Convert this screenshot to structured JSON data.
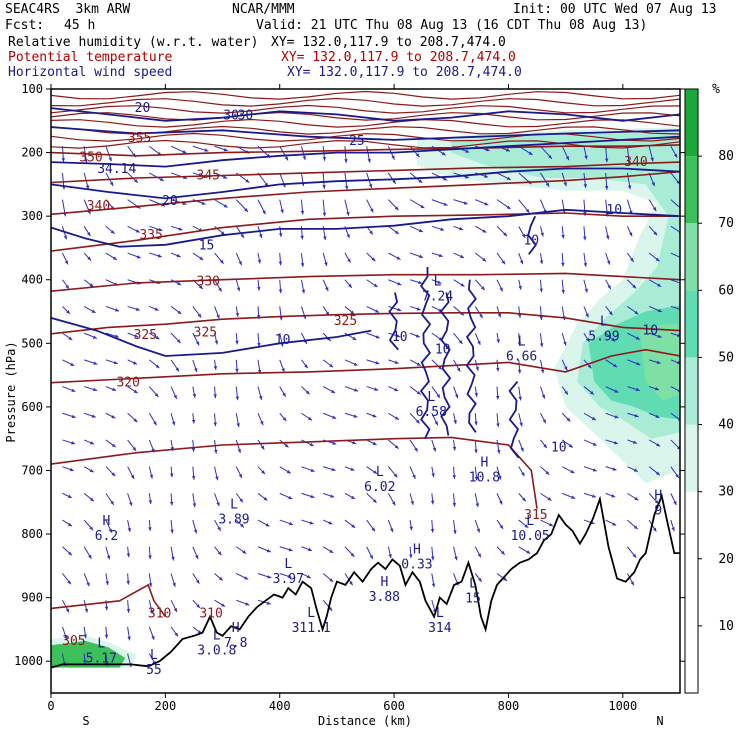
{
  "header": {
    "model": "SEAC4RS  3km ARW",
    "org": "NCAR/MMM",
    "init": "Init: 00 UTC Wed 07 Aug 13",
    "fcst_label": "Fcst:",
    "fcst_value": "45 h",
    "valid": "Valid: 21 UTC Thu 08 Aug 13 (16 CDT Thu 08 Aug 13)",
    "field1": "Relative humidity (w.r.t. water)",
    "field1_xy": "XY= 132.0,117.9 to 208.7,474.0",
    "field2": "Potential temperature",
    "field2_xy": "XY= 132.0,117.9 to 208.7,474.0",
    "field3": "Horizontal wind speed",
    "field3_xy": "XY= 132.0,117.9 to 208.7,474.0"
  },
  "colors": {
    "theta": "#8b1a1a",
    "wind": "#1a1a8c",
    "vectors": "#3030c0",
    "terrain": "#000000",
    "rh_30": "#d9f5ec",
    "rh_40": "#a8ecd6",
    "rh_50": "#5fdcb2",
    "rh_60": "#7ee0a4",
    "rh_70": "#3cc05a",
    "rh_80": "#1aa83a"
  },
  "chart_data": {
    "type": "cross-section",
    "xlabel": "Distance (km)",
    "ylabel": "Pressure (hPa)",
    "xlim": [
      0,
      1100
    ],
    "ylim": [
      1050,
      100
    ],
    "x_ticks": [
      0,
      200,
      400,
      600,
      800,
      1000
    ],
    "y_ticks": [
      100,
      200,
      300,
      400,
      500,
      600,
      700,
      800,
      900,
      1000
    ],
    "x_end_labels": {
      "left": "S",
      "right": "N"
    },
    "colorbar": {
      "unit": "%",
      "levels": [
        10,
        20,
        30,
        40,
        50,
        60,
        70,
        80
      ],
      "colors": [
        "#ffffff",
        "#ffffff",
        "#ffffff",
        "#d9f5ec",
        "#a8ecd6",
        "#5fdcb2",
        "#7ee0a4",
        "#3cc05a",
        "#1aa83a"
      ]
    },
    "theta_labels": [
      {
        "text": "350",
        "x": 70,
        "p": 208
      },
      {
        "text": "345",
        "x": 275,
        "p": 236
      },
      {
        "text": "340",
        "x": 83,
        "p": 284
      },
      {
        "text": "335",
        "x": 175,
        "p": 330
      },
      {
        "text": "330",
        "x": 275,
        "p": 403
      },
      {
        "text": "325",
        "x": 515,
        "p": 465
      },
      {
        "text": "325",
        "x": 165,
        "p": 487
      },
      {
        "text": "325",
        "x": 270,
        "p": 483
      },
      {
        "text": "320",
        "x": 135,
        "p": 562
      },
      {
        "text": "340",
        "x": 1023,
        "p": 215
      },
      {
        "text": "355",
        "x": 155,
        "p": 177
      },
      {
        "text": "315",
        "x": 848,
        "p": 770
      },
      {
        "text": "310",
        "x": 190,
        "p": 925
      },
      {
        "text": "310",
        "x": 280,
        "p": 925
      },
      {
        "text": "305",
        "x": 40,
        "p": 968
      }
    ],
    "wind_labels": [
      {
        "text": "34.14",
        "x": 115,
        "p": 226
      },
      {
        "text": "20",
        "x": 208,
        "p": 276
      },
      {
        "text": "15",
        "x": 272,
        "p": 346
      },
      {
        "text": "25",
        "x": 535,
        "p": 182
      },
      {
        "text": "30",
        "x": 315,
        "p": 142
      },
      {
        "text": "30",
        "x": 340,
        "p": 142
      },
      {
        "text": "20",
        "x": 160,
        "p": 130
      },
      {
        "text": "10",
        "x": 405,
        "p": 495
      },
      {
        "text": "10",
        "x": 610,
        "p": 490
      },
      {
        "text": "10",
        "x": 685,
        "p": 510
      },
      {
        "text": "10",
        "x": 888,
        "p": 664
      },
      {
        "text": "10",
        "x": 985,
        "p": 290
      },
      {
        "text": "10",
        "x": 840,
        "p": 338
      },
      {
        "text": "10",
        "x": 1048,
        "p": 480
      }
    ],
    "extrema": [
      {
        "kind": "L",
        "value": "7.24",
        "x": 676,
        "p": 415
      },
      {
        "kind": "L",
        "value": "6.66",
        "x": 823,
        "p": 510
      },
      {
        "kind": "L",
        "value": "5.99",
        "x": 967,
        "p": 478
      },
      {
        "kind": "L",
        "value": "6.58",
        "x": 665,
        "p": 597
      },
      {
        "kind": "L",
        "value": "6.02",
        "x": 575,
        "p": 715
      },
      {
        "kind": "L",
        "value": "3.89",
        "x": 320,
        "p": 766
      },
      {
        "kind": "H",
        "value": "6.2",
        "x": 97,
        "p": 792
      },
      {
        "kind": "L",
        "value": "3.97",
        "x": 415,
        "p": 860
      },
      {
        "kind": "H",
        "value": "10.8",
        "x": 758,
        "p": 700
      },
      {
        "kind": "L",
        "value": "10.05",
        "x": 838,
        "p": 792
      },
      {
        "kind": "H",
        "value": "0.33",
        "x": 640,
        "p": 837
      },
      {
        "kind": "H",
        "value": "3.88",
        "x": 583,
        "p": 888
      },
      {
        "kind": "L",
        "value": "15",
        "x": 738,
        "p": 890
      },
      {
        "kind": "L",
        "value": "314",
        "x": 680,
        "p": 937
      },
      {
        "kind": "L",
        "value": "311.1",
        "x": 455,
        "p": 937
      },
      {
        "kind": "H",
        "value": "7.8",
        "x": 323,
        "p": 960
      },
      {
        "kind": "L",
        "value": "3.0.8",
        "x": 290,
        "p": 972
      },
      {
        "kind": "L",
        "value": "5.17",
        "x": 88,
        "p": 985
      },
      {
        "kind": "L",
        "value": "55",
        "x": 180,
        "p": 1003
      },
      {
        "kind": "H",
        "value": "9",
        "x": 1062,
        "p": 752
      }
    ],
    "terrain_profile": [
      [
        0,
        1010
      ],
      [
        20,
        1005
      ],
      [
        60,
        1005
      ],
      [
        100,
        1005
      ],
      [
        140,
        1005
      ],
      [
        170,
        1008
      ],
      [
        190,
        1000
      ],
      [
        210,
        985
      ],
      [
        230,
        965
      ],
      [
        250,
        960
      ],
      [
        265,
        955
      ],
      [
        278,
        930
      ],
      [
        290,
        955
      ],
      [
        300,
        960
      ],
      [
        315,
        945
      ],
      [
        330,
        950
      ],
      [
        345,
        930
      ],
      [
        360,
        915
      ],
      [
        375,
        905
      ],
      [
        390,
        895
      ],
      [
        405,
        900
      ],
      [
        415,
        885
      ],
      [
        428,
        895
      ],
      [
        440,
        875
      ],
      [
        455,
        885
      ],
      [
        465,
        920
      ],
      [
        475,
        950
      ],
      [
        482,
        930
      ],
      [
        490,
        900
      ],
      [
        500,
        875
      ],
      [
        515,
        880
      ],
      [
        530,
        860
      ],
      [
        545,
        875
      ],
      [
        560,
        855
      ],
      [
        572,
        845
      ],
      [
        585,
        855
      ],
      [
        597,
        840
      ],
      [
        610,
        850
      ],
      [
        620,
        880
      ],
      [
        632,
        860
      ],
      [
        645,
        875
      ],
      [
        655,
        905
      ],
      [
        670,
        930
      ],
      [
        680,
        900
      ],
      [
        692,
        910
      ],
      [
        705,
        880
      ],
      [
        718,
        875
      ],
      [
        730,
        845
      ],
      [
        742,
        880
      ],
      [
        752,
        930
      ],
      [
        760,
        950
      ],
      [
        770,
        905
      ],
      [
        780,
        880
      ],
      [
        790,
        870
      ],
      [
        805,
        855
      ],
      [
        820,
        845
      ],
      [
        835,
        840
      ],
      [
        850,
        830
      ],
      [
        862,
        810
      ],
      [
        875,
        800
      ],
      [
        888,
        770
      ],
      [
        900,
        785
      ],
      [
        912,
        795
      ],
      [
        925,
        815
      ],
      [
        935,
        800
      ],
      [
        948,
        775
      ],
      [
        960,
        745
      ],
      [
        975,
        820
      ],
      [
        990,
        870
      ],
      [
        1005,
        875
      ],
      [
        1020,
        860
      ],
      [
        1030,
        840
      ],
      [
        1040,
        830
      ],
      [
        1055,
        770
      ],
      [
        1068,
        740
      ],
      [
        1080,
        790
      ],
      [
        1090,
        830
      ],
      [
        1100,
        830
      ]
    ],
    "theta_contours": [
      {
        "value": 350,
        "points": [
          [
            0,
            200
          ],
          [
            150,
            205
          ],
          [
            300,
            200
          ],
          [
            450,
            198
          ],
          [
            600,
            195
          ],
          [
            750,
            193
          ],
          [
            900,
            190
          ],
          [
            1000,
            190
          ],
          [
            1100,
            188
          ]
        ]
      },
      {
        "value": 345,
        "points": [
          [
            0,
            247
          ],
          [
            150,
            240
          ],
          [
            300,
            236
          ],
          [
            450,
            232
          ],
          [
            600,
            228
          ],
          [
            750,
            224
          ],
          [
            900,
            222
          ],
          [
            1000,
            218
          ],
          [
            1100,
            215
          ]
        ]
      },
      {
        "value": 340,
        "points": [
          [
            0,
            297
          ],
          [
            150,
            285
          ],
          [
            300,
            272
          ],
          [
            450,
            262
          ],
          [
            600,
            256
          ],
          [
            750,
            250
          ],
          [
            900,
            244
          ],
          [
            1000,
            238
          ],
          [
            1100,
            230
          ]
        ]
      },
      {
        "value": 335,
        "points": [
          [
            0,
            355
          ],
          [
            150,
            338
          ],
          [
            300,
            318
          ],
          [
            450,
            305
          ],
          [
            600,
            300
          ],
          [
            750,
            298
          ],
          [
            900,
            295
          ],
          [
            1000,
            300
          ],
          [
            1100,
            300
          ]
        ]
      },
      {
        "value": 330,
        "points": [
          [
            0,
            418
          ],
          [
            150,
            405
          ],
          [
            300,
            400
          ],
          [
            450,
            395
          ],
          [
            600,
            392
          ],
          [
            750,
            392
          ],
          [
            900,
            390
          ],
          [
            1000,
            395
          ],
          [
            1100,
            400
          ]
        ]
      },
      {
        "value": 325,
        "points": [
          [
            0,
            485
          ],
          [
            100,
            475
          ],
          [
            200,
            470
          ],
          [
            300,
            462
          ],
          [
            400,
            458
          ],
          [
            500,
            455
          ],
          [
            600,
            453
          ],
          [
            700,
            452
          ],
          [
            800,
            452
          ],
          [
            900,
            460
          ],
          [
            1000,
            475
          ],
          [
            1100,
            480
          ]
        ]
      },
      {
        "value": 320,
        "points": [
          [
            0,
            562
          ],
          [
            150,
            555
          ],
          [
            300,
            548
          ],
          [
            450,
            545
          ],
          [
            600,
            540
          ],
          [
            700,
            535
          ],
          [
            800,
            530
          ],
          [
            900,
            545
          ],
          [
            980,
            520
          ],
          [
            1040,
            510
          ],
          [
            1100,
            520
          ]
        ]
      },
      {
        "value": 315,
        "points": [
          [
            0,
            690
          ],
          [
            150,
            672
          ],
          [
            300,
            660
          ],
          [
            450,
            655
          ],
          [
            600,
            650
          ],
          [
            700,
            648
          ],
          [
            800,
            660
          ],
          [
            840,
            700
          ],
          [
            850,
            760
          ]
        ]
      },
      {
        "value": 310,
        "points": [
          [
            0,
            917
          ],
          [
            120,
            905
          ],
          [
            170,
            880
          ],
          [
            180,
            905
          ],
          [
            200,
            930
          ]
        ]
      }
    ]
  }
}
